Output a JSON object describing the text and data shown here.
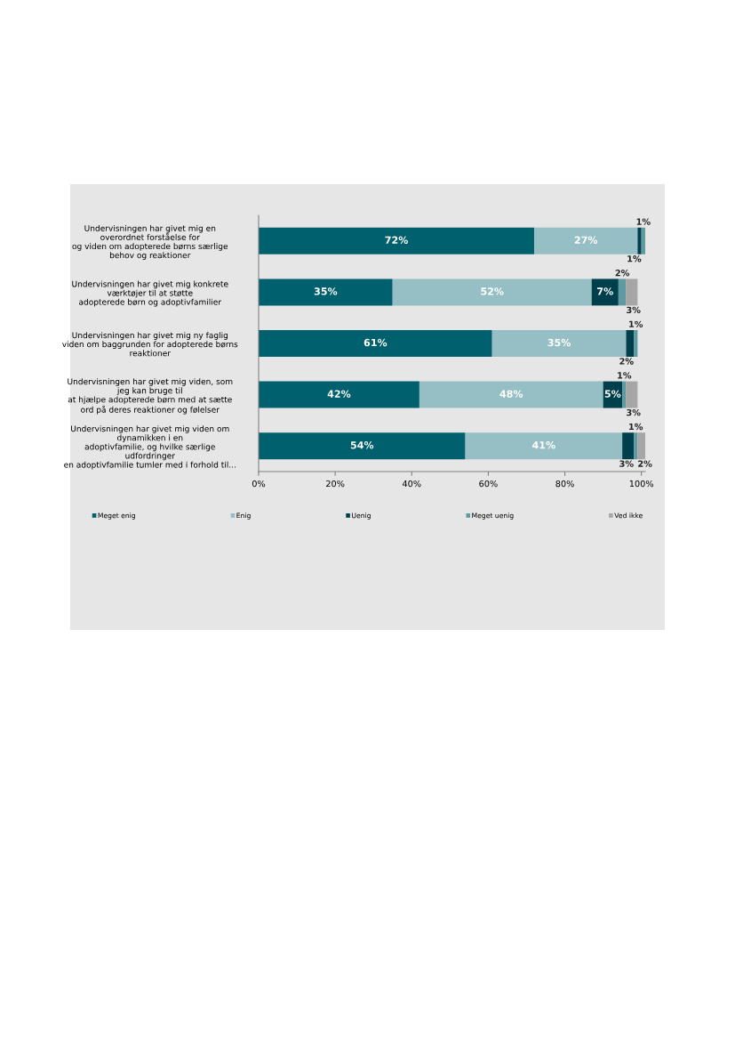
{
  "chart_data": {
    "type": "bar",
    "orientation": "horizontal",
    "stacked": true,
    "categories": [
      "Undervisningen har givet mig en\noverordnet forståelse for\nog viden om adopterede børns særlige\nbehov og reaktioner",
      "Undervisningen har givet mig konkrete\nværktøjer til at støtte\nadopterede børn og adoptivfamilier",
      "Undervisningen har givet mig ny faglig\nviden om baggrunden for adopterede børns\nreaktioner",
      "Undervisningen har givet mig viden, som\njeg kan bruge til\nat hjælpe adopterede børn med at sætte\nord på deres reaktioner og følelser",
      "Undervisningen har givet mig viden om\ndynamikken i en\nadoptivfamilie, og hvilke særlige\nudfordringer\nen adoptivfamilie tumler med i forhold til..."
    ],
    "series": [
      {
        "name": "Meget enig",
        "color": "#00606e",
        "values": [
          72,
          35,
          61,
          42,
          54
        ],
        "value_labels": [
          "72%",
          "35%",
          "61%",
          "42%",
          "54%"
        ]
      },
      {
        "name": "Enig",
        "color": "#96bfc5",
        "values": [
          27,
          52,
          35,
          48,
          41
        ],
        "value_labels": [
          "27%",
          "52%",
          "35%",
          "48%",
          "41%"
        ]
      },
      {
        "name": "Uenig",
        "color": "#003f4c",
        "values": [
          1,
          7,
          2,
          5,
          3
        ],
        "value_labels": [
          "1%",
          "7%",
          "2%",
          "5%",
          "3%"
        ]
      },
      {
        "name": "Meget uenig",
        "color": "#5f9aa3",
        "values": [
          1,
          2,
          1,
          1,
          1
        ],
        "value_labels": [
          "1%",
          "2%",
          "1%",
          "1%",
          "1%"
        ]
      },
      {
        "name": "Ved ikke",
        "color": "#a6a6a6",
        "values": [
          null,
          3,
          null,
          3,
          2
        ],
        "value_labels": [
          null,
          "3%",
          null,
          "3%",
          "2%"
        ]
      }
    ],
    "xlim": [
      0,
      101
    ],
    "xticks": [
      {
        "value": 0,
        "label": "0%"
      },
      {
        "value": 20,
        "label": "20%"
      },
      {
        "value": 40,
        "label": "40%"
      },
      {
        "value": 60,
        "label": "60%"
      },
      {
        "value": 80,
        "label": "80%"
      },
      {
        "value": 100,
        "label": "100%"
      }
    ],
    "grid": false,
    "legend": "bottom"
  }
}
